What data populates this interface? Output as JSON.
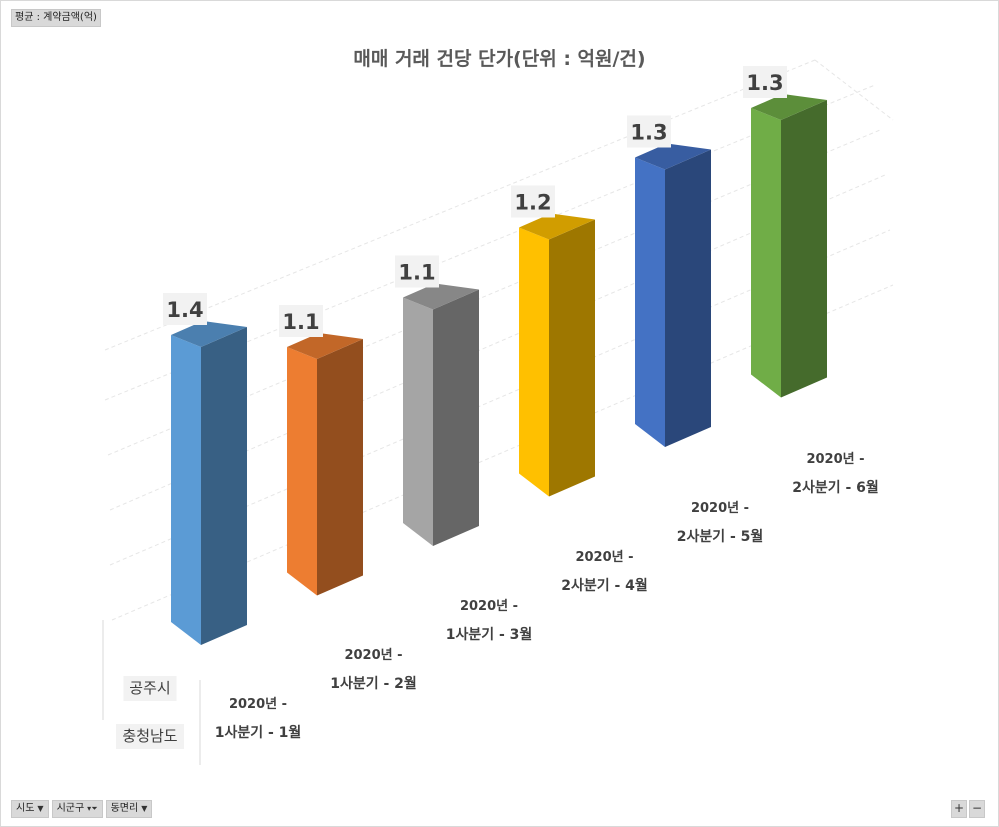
{
  "value_field": "평균 : 계약금액(억)",
  "axis_fields": [
    {
      "label": "시도",
      "filtered": false
    },
    {
      "label": "시군구",
      "filtered": true
    },
    {
      "label": "동면리",
      "filtered": false
    }
  ],
  "zoom": {
    "plus": "+",
    "minus": "−"
  },
  "chart_data": {
    "type": "bar",
    "title": "매매 거래 건당 단가(단위 : 억원/건)",
    "outer_categories": [
      "공주시",
      "충청남도"
    ],
    "categories": [
      [
        "2020년 -",
        "1사분기 - 1월"
      ],
      [
        "2020년 -",
        "1사분기 - 2월"
      ],
      [
        "2020년 -",
        "1사분기 - 3월"
      ],
      [
        "2020년 -",
        "2사분기 - 4월"
      ],
      [
        "2020년 -",
        "2사분기 - 5월"
      ],
      [
        "2020년 -",
        "2사분기 - 6월"
      ]
    ],
    "values": [
      1.4,
      1.1,
      1.1,
      1.2,
      1.3,
      1.3
    ],
    "data_labels": [
      "1.4",
      "1.1",
      "1.1",
      "1.2",
      "1.3",
      "1.3"
    ],
    "colors": [
      "#5b9bd5",
      "#ed7d31",
      "#a5a5a5",
      "#ffc000",
      "#4472c4",
      "#70ad47"
    ],
    "grid": true,
    "legend": "none",
    "style": "3d-column"
  }
}
